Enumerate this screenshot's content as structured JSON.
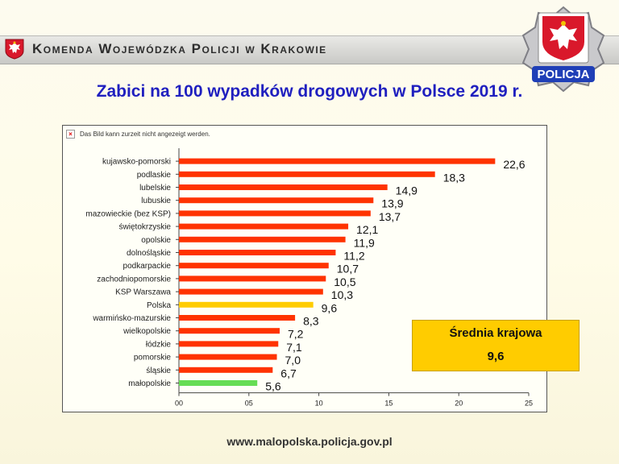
{
  "header": {
    "title": "Komenda Wojewódzka Policji w Krakowie"
  },
  "badge": {
    "label": "POLICJA"
  },
  "title": "Zabici na 100 wypadków drogowych w Polsce 2019 r.",
  "broken_image_text": "Das Bild kann zurzeit nicht angezeigt werden.",
  "average_box": {
    "label": "Średnia krajowa",
    "value": "9,6"
  },
  "footer": {
    "url": "www.malopolska.policja.gov.pl"
  },
  "colors": {
    "default_bar": "#ff3300",
    "highlight_bar": "#ffcc00",
    "min_bar": "#66dd55",
    "title": "#1f1fbf"
  },
  "chart_data": {
    "type": "bar",
    "orientation": "horizontal",
    "categories": [
      "kujawsko-pomorski",
      "podlaskie",
      "lubelskie",
      "lubuskie",
      "mazowieckie (bez KSP)",
      "świętokrzyskie",
      "opolskie",
      "dolnośląskie",
      "podkarpackie",
      "zachodniopomorskie",
      "KSP Warszawa",
      "Polska",
      "warmińsko-mazurskie",
      "wielkopolskie",
      "łódzkie",
      "pomorskie",
      "śląskie",
      "małopolskie"
    ],
    "values": [
      22.6,
      18.3,
      14.9,
      13.9,
      13.7,
      12.1,
      11.9,
      11.2,
      10.7,
      10.5,
      10.3,
      9.6,
      8.3,
      7.2,
      7.1,
      7.0,
      6.7,
      5.6
    ],
    "value_labels": [
      "22,6",
      "18,3",
      "14,9",
      "13,9",
      "13,7",
      "12,1",
      "11,9",
      "11,2",
      "10,7",
      "10,5",
      "10,3",
      "9,6",
      "8,3",
      "7,2",
      "7,1",
      "7,0",
      "6,7",
      "5,6"
    ],
    "bar_colors": [
      "#ff3300",
      "#ff3300",
      "#ff3300",
      "#ff3300",
      "#ff3300",
      "#ff3300",
      "#ff3300",
      "#ff3300",
      "#ff3300",
      "#ff3300",
      "#ff3300",
      "#ffcc00",
      "#ff3300",
      "#ff3300",
      "#ff3300",
      "#ff3300",
      "#ff3300",
      "#66dd55"
    ],
    "xlim": [
      0,
      25
    ],
    "xticks": [
      0,
      5,
      10,
      15,
      20,
      25
    ],
    "xtick_labels": [
      "00",
      "05",
      "10",
      "15",
      "20",
      "25"
    ],
    "grid": false
  }
}
